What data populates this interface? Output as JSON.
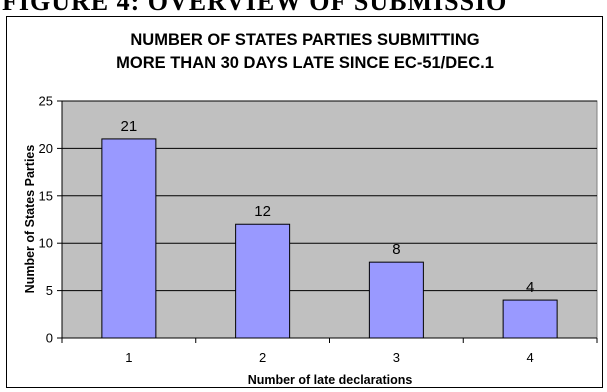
{
  "page_heading": "FIGURE 4:   OVERVIEW OF SUBMISSIO",
  "chart_data": {
    "type": "bar",
    "title": "NUMBER OF STATES PARTIES SUBMITTING",
    "subtitle": "MORE THAN 30 DAYS LATE SINCE EC-51/DEC.1",
    "xlabel": "Number of late declarations",
    "ylabel": "Number of States Parties",
    "categories": [
      "1",
      "2",
      "3",
      "4"
    ],
    "values": [
      21,
      12,
      8,
      4
    ],
    "data_labels": [
      "21",
      "12",
      "8",
      "4"
    ],
    "ylim": [
      0,
      25
    ],
    "yticks": [
      "0",
      "5",
      "10",
      "15",
      "20",
      "25"
    ],
    "grid": true,
    "legend": "none",
    "colors": {
      "plot_background": "#c0c0c0",
      "bar_fill": "#9999ff",
      "bar_stroke": "#000000",
      "gridline": "#000000"
    }
  }
}
